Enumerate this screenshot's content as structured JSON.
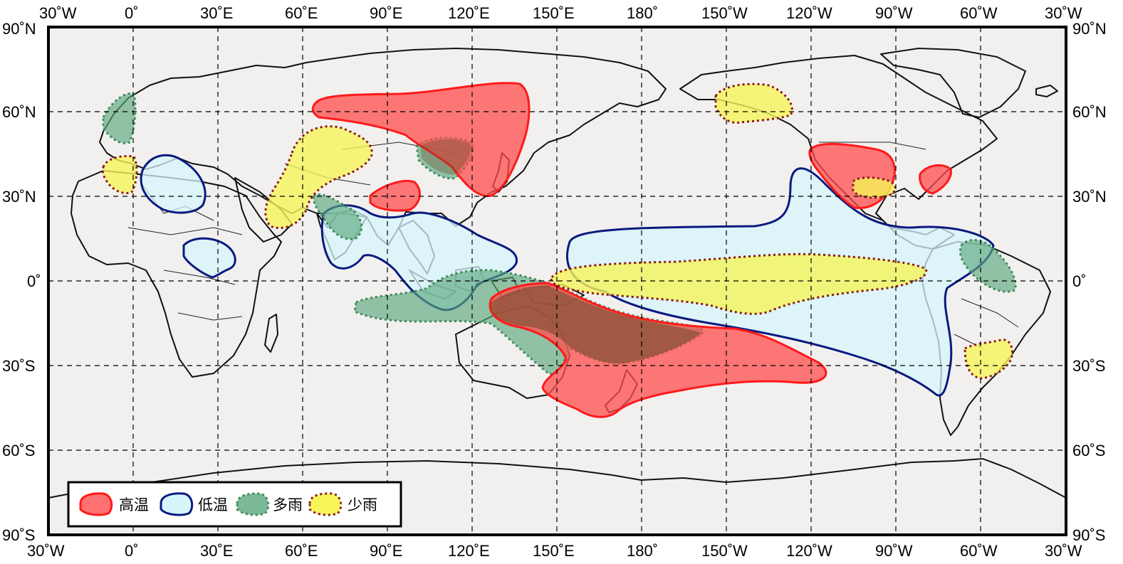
{
  "colors": {
    "warm_fill": "#ff4d4d",
    "warm_edge": "#ff1a1a",
    "cold_fill": "#d6f6fb",
    "cold_edge": "#0a1a80",
    "wet_fill": "#5aa87d",
    "wet_edge": "#3f8a5c",
    "dry_fill": "#f5f55a",
    "dry_edge": "#8b1a1a",
    "ocean": "#f2f0ef"
  },
  "axes": {
    "top_ticks": [
      "30˚W",
      "0˚",
      "30˚E",
      "60˚E",
      "90˚E",
      "120˚E",
      "150˚E",
      "180˚",
      "150˚W",
      "120˚W",
      "90˚W",
      "60˚W",
      "30˚W"
    ],
    "bottom_ticks": [
      "30˚W",
      "0˚",
      "30˚E",
      "60˚E",
      "90˚E",
      "120˚E",
      "150˚E",
      "180˚",
      "150˚W",
      "120˚W",
      "90˚W",
      "60˚W",
      "30˚W"
    ],
    "left_ticks": [
      "90˚N",
      "60˚N",
      "30˚N",
      "0˚",
      "30˚S",
      "60˚S",
      "90˚S"
    ],
    "right_ticks": [
      "90˚N",
      "60˚N",
      "30˚N",
      "0˚",
      "30˚S",
      "60˚S",
      "90˚S"
    ]
  },
  "legend": {
    "items": [
      {
        "key": "warm",
        "label": "高温"
      },
      {
        "key": "cold",
        "label": "低温"
      },
      {
        "key": "wet",
        "label": "多雨"
      },
      {
        "key": "dry",
        "label": "少雨"
      }
    ]
  },
  "regions": [
    {
      "type": "warm",
      "name": "east-asia-warm-region"
    },
    {
      "type": "warm",
      "name": "south-asia-warm-region"
    },
    {
      "type": "warm",
      "name": "australia-south-pacific-warm-region"
    },
    {
      "type": "warm",
      "name": "north-america-southwest-warm-region"
    },
    {
      "type": "warm",
      "name": "north-america-east-warm-region"
    },
    {
      "type": "cold",
      "name": "mediterranean-cold-region"
    },
    {
      "type": "cold",
      "name": "central-africa-cold-region"
    },
    {
      "type": "cold",
      "name": "south-asia-cold-region"
    },
    {
      "type": "cold",
      "name": "eastern-pacific-cold-region"
    },
    {
      "type": "wet",
      "name": "scandinavia-wet-region"
    },
    {
      "type": "wet",
      "name": "mongolia-wet-region"
    },
    {
      "type": "wet",
      "name": "india-wet-region"
    },
    {
      "type": "wet",
      "name": "maritime-continent-wet-region"
    },
    {
      "type": "wet",
      "name": "northern-south-america-wet-region"
    },
    {
      "type": "dry",
      "name": "iberia-dry-region"
    },
    {
      "type": "dry",
      "name": "central-asia-dry-region"
    },
    {
      "type": "dry",
      "name": "alaska-dry-region"
    },
    {
      "type": "dry",
      "name": "gulf-of-mexico-dry-region"
    },
    {
      "type": "dry",
      "name": "equatorial-pacific-dry-region"
    },
    {
      "type": "dry",
      "name": "southern-brazil-dry-region"
    }
  ]
}
